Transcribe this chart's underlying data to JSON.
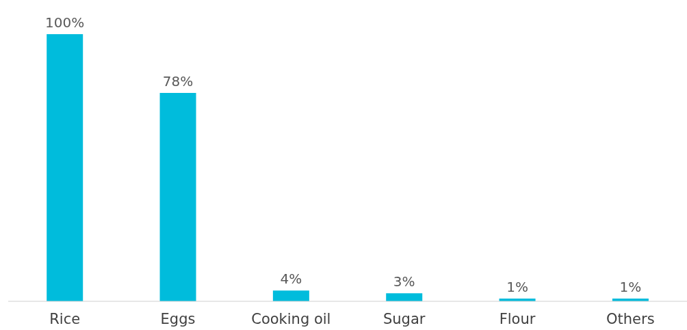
{
  "chart_data": {
    "type": "bar",
    "categories": [
      "Rice",
      "Eggs",
      "Cooking oil",
      "Sugar",
      "Flour",
      "Others"
    ],
    "values": [
      100,
      78,
      4,
      3,
      1,
      1
    ],
    "color": "#00bcdc",
    "value_labels": [
      "100%",
      "78%",
      "4%",
      "3%",
      "1%",
      "1%"
    ],
    "grid": false,
    "legend": false
  }
}
